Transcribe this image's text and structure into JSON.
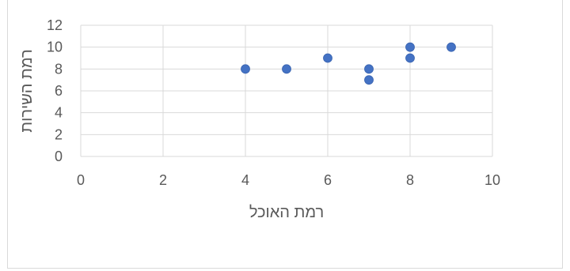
{
  "chart_data": {
    "type": "scatter",
    "xlabel": "רמת האוכל",
    "ylabel": "רמת השירות",
    "xlim": [
      0,
      10
    ],
    "ylim": [
      0,
      12
    ],
    "x_ticks": [
      "0",
      "2",
      "4",
      "6",
      "8",
      "10"
    ],
    "y_ticks": [
      "0",
      "2",
      "4",
      "6",
      "8",
      "10",
      "12"
    ],
    "grid": true,
    "legend": "none",
    "marker_color": "#4472c4",
    "points": [
      {
        "x": 4,
        "y": 8
      },
      {
        "x": 5,
        "y": 8
      },
      {
        "x": 6,
        "y": 9
      },
      {
        "x": 7,
        "y": 8
      },
      {
        "x": 7,
        "y": 7
      },
      {
        "x": 8,
        "y": 10
      },
      {
        "x": 8,
        "y": 9
      },
      {
        "x": 9,
        "y": 10
      }
    ]
  }
}
